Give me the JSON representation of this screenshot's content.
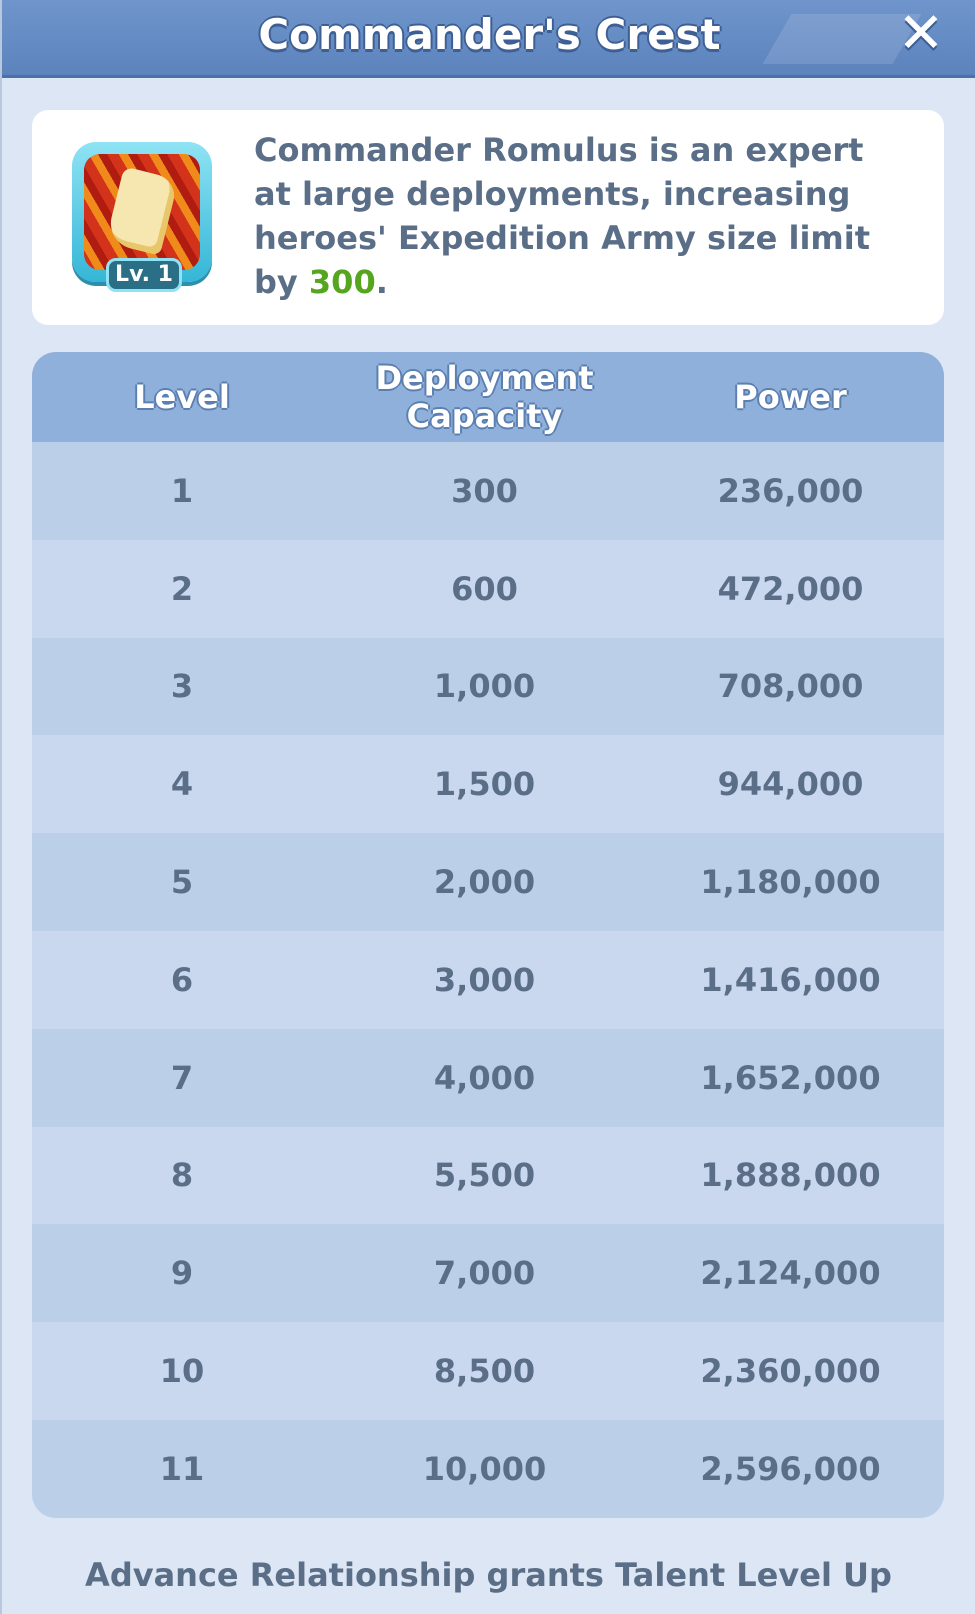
{
  "header": {
    "title": "Commander's Crest",
    "close_glyph": "✕"
  },
  "description": {
    "badge_level": "Lv. 1",
    "text_before": "Commander Romulus is an expert at large deployments, increasing heroes' Expedition Army size limit by ",
    "highlight": "300",
    "text_after": ".",
    "highlight_color": "#55a51f"
  },
  "table": {
    "headers": [
      "Level",
      "Deployment Capacity",
      "Power"
    ],
    "rows": [
      [
        "1",
        "300",
        "236,000"
      ],
      [
        "2",
        "600",
        "472,000"
      ],
      [
        "3",
        "1,000",
        "708,000"
      ],
      [
        "4",
        "1,500",
        "944,000"
      ],
      [
        "5",
        "2,000",
        "1,180,000"
      ],
      [
        "6",
        "3,000",
        "1,416,000"
      ],
      [
        "7",
        "4,000",
        "1,652,000"
      ],
      [
        "8",
        "5,500",
        "1,888,000"
      ],
      [
        "9",
        "7,000",
        "2,124,000"
      ],
      [
        "10",
        "8,500",
        "2,360,000"
      ],
      [
        "11",
        "10,000",
        "2,596,000"
      ]
    ]
  },
  "footer": {
    "text": "Advance Relationship grants Talent Level Up"
  },
  "icons": {
    "close": "close-icon",
    "badge": "commanders-crest-icon"
  }
}
